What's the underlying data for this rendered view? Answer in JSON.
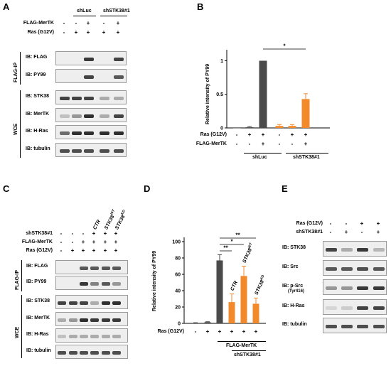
{
  "panels": {
    "A": {
      "letter": "A",
      "groups": [
        "shLuc",
        "shSTK38#1"
      ],
      "rows": [
        {
          "label": "FLAG-MerTK",
          "signs": [
            "-",
            "-",
            "+",
            "-",
            "+"
          ]
        },
        {
          "label": "Ras (G12V)",
          "signs": [
            "-",
            "+",
            "+",
            "+",
            "+"
          ]
        }
      ],
      "blots": [
        {
          "label": "IB: FLAG",
          "bands": [
            0,
            0,
            0.85,
            0,
            0.8
          ]
        },
        {
          "label": "IB: PY99",
          "bands": [
            0,
            0,
            0.8,
            0,
            0.7
          ]
        },
        {
          "label": "IB: STK38",
          "bands": [
            0.8,
            0.8,
            0.8,
            0.3,
            0.3
          ]
        },
        {
          "label": "IB: MerTK",
          "bands": [
            0.2,
            0.4,
            0.9,
            0.3,
            0.8
          ]
        },
        {
          "label": "IB: H-Ras",
          "bands": [
            0.6,
            0.9,
            0.9,
            0.9,
            0.9
          ]
        },
        {
          "label": "IB: tubulin",
          "bands": [
            0.75,
            0.75,
            0.75,
            0.75,
            0.75
          ]
        }
      ],
      "side_labels": [
        "FLAG-IP",
        "WCE"
      ]
    },
    "B": {
      "letter": "B",
      "groups": [
        "shLuc",
        "shSTK38#1"
      ],
      "rows": [
        {
          "label": "Ras (G12V)",
          "signs": [
            "-",
            "+",
            "+",
            "-",
            "+",
            "+"
          ]
        },
        {
          "label": "FLAG-MerTK",
          "signs": [
            "-",
            "-",
            "+",
            "-",
            "-",
            "+"
          ]
        }
      ]
    },
    "C": {
      "letter": "C",
      "lane_headers": [
        "CTR",
        "STK38",
        "STK38"
      ],
      "lane_header_sup": [
        "",
        "WT",
        "KD"
      ],
      "rows": [
        {
          "label": "shSTK38#1",
          "signs": [
            "-",
            "-",
            "-",
            "+",
            "+",
            "+"
          ]
        },
        {
          "label": "FLAG-MerTK",
          "signs": [
            "-",
            "-",
            "+",
            "+",
            "+",
            "+"
          ]
        },
        {
          "label": "Ras (G12V)",
          "signs": [
            "-",
            "+",
            "+",
            "+",
            "+",
            "+"
          ]
        }
      ],
      "blots": [
        {
          "label": "IB: FLAG",
          "bands": [
            0,
            0,
            0.7,
            0.7,
            0.7,
            0.7
          ]
        },
        {
          "label": "IB: PY99",
          "bands": [
            0,
            0,
            0.85,
            0.5,
            0.7,
            0.4
          ]
        },
        {
          "label": "IB: STK38",
          "bands": [
            0.8,
            0.8,
            0.8,
            0.3,
            0.9,
            0.9
          ]
        },
        {
          "label": "IB: MerTK",
          "bands": [
            0.3,
            0.4,
            0.9,
            0.85,
            0.85,
            0.85
          ]
        },
        {
          "label": "IB: H-Ras",
          "bands": [
            0.2,
            0.3,
            0.3,
            0.3,
            0.3,
            0.3
          ]
        },
        {
          "label": "IB: tubulin",
          "bands": [
            0.75,
            0.75,
            0.75,
            0.75,
            0.75,
            0.75
          ]
        }
      ],
      "side_labels": [
        "FLAG-IP",
        "WCE"
      ]
    },
    "D": {
      "letter": "D",
      "rows": [
        {
          "label": "Ras (G12V)",
          "signs": [
            "-",
            "+",
            "+",
            "+",
            "+",
            "+"
          ]
        }
      ],
      "bracket_labels": [
        "FLAG-MerTK",
        "shSTK38#1"
      ],
      "bar_labels": [
        "",
        "",
        "",
        "CTR",
        "STK38",
        "STK38"
      ],
      "bar_label_sup": [
        "",
        "",
        "",
        "",
        "WT",
        "KD"
      ],
      "sig_labels": [
        "**",
        "*",
        "**"
      ]
    },
    "E": {
      "letter": "E",
      "rows": [
        {
          "label": "Ras (G12V)",
          "signs": [
            "-",
            "-",
            "+",
            "+"
          ]
        },
        {
          "label": "shSTK38#1",
          "signs": [
            "-",
            "+",
            "-",
            "+"
          ]
        }
      ],
      "blots": [
        {
          "label": "IB: STK38",
          "sublabel": "",
          "bands": [
            0.8,
            0.3,
            0.85,
            0.25
          ]
        },
        {
          "label": "IB: Src",
          "sublabel": "",
          "bands": [
            0.7,
            0.7,
            0.75,
            0.7
          ]
        },
        {
          "label": "IB: p-Src",
          "sublabel": "(Tyr416)",
          "bands": [
            0.4,
            0.4,
            0.85,
            0.85
          ]
        },
        {
          "label": "IB: H-Ras",
          "sublabel": "",
          "bands": [
            0.1,
            0.15,
            0.8,
            0.8
          ]
        },
        {
          "label": "IB: tubulin",
          "sublabel": "",
          "bands": [
            0.75,
            0.75,
            0.75,
            0.75
          ]
        }
      ]
    }
  },
  "chart_data": [
    {
      "type": "bar",
      "panel": "B",
      "ylabel": "Relative intensity of PY99",
      "ylim": [
        0,
        1.1
      ],
      "yticks": [
        0,
        0.5,
        1
      ],
      "yticklabels": [
        "0",
        "0.5",
        "1"
      ],
      "values": [
        0.0,
        0.01,
        1.0,
        0.03,
        0.03,
        0.43
      ],
      "errors": [
        0.0,
        0.01,
        0.0,
        0.02,
        0.02,
        0.08
      ],
      "colors": [
        "#4a4a4a",
        "#4a4a4a",
        "#4a4a4a",
        "#f28a2c",
        "#f28a2c",
        "#f28a2c"
      ],
      "significance": [
        {
          "from": 2,
          "to": 5,
          "label": "*"
        }
      ]
    },
    {
      "type": "bar",
      "panel": "D",
      "ylabel": "Relative intensity of PY99",
      "ylim": [
        0,
        100
      ],
      "yticks": [
        0,
        20,
        40,
        60,
        80,
        100
      ],
      "yticklabels": [
        "0",
        "20",
        "40",
        "60",
        "80",
        "100"
      ],
      "values": [
        0.5,
        1.5,
        77,
        26,
        58,
        24
      ],
      "errors": [
        0.3,
        0.5,
        7,
        10,
        12,
        7
      ],
      "colors": [
        "#4a4a4a",
        "#4a4a4a",
        "#4a4a4a",
        "#f28a2c",
        "#f28a2c",
        "#f28a2c"
      ],
      "significance": [
        {
          "from": 2,
          "to": 3,
          "label": "**"
        },
        {
          "from": 2,
          "to": 4,
          "label": "*"
        },
        {
          "from": 2,
          "to": 5,
          "label": "**"
        }
      ]
    }
  ]
}
